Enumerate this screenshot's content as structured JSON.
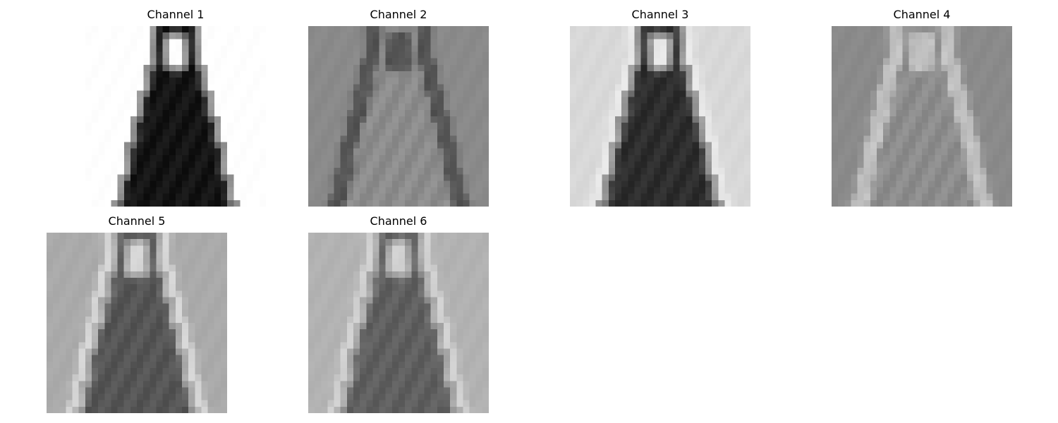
{
  "chart_data": {
    "type": "heatmap",
    "colormap": "gray",
    "axis": "off",
    "grid": false,
    "layout": {
      "rows": 2,
      "cols": 4
    },
    "panels": [
      {
        "title": "Channel 1",
        "background": 255,
        "silhouette": {
          "width": 255,
          "height": 255
        },
        "outline": 255,
        "inner": 20
      },
      {
        "title": "Channel 2",
        "background": 138,
        "silhouette": {
          "width": 255,
          "height": 255
        },
        "outline": 40,
        "inner": 140
      },
      {
        "title": "Channel 3",
        "background": 216,
        "silhouette": {
          "width": 255,
          "height": 255
        },
        "outline": 245,
        "inner": 45
      },
      {
        "title": "Channel 4",
        "background": 138,
        "silhouette": {
          "width": 255,
          "height": 255
        },
        "outline": 235,
        "inner": 140
      },
      {
        "title": "Channel 5",
        "background": 170,
        "silhouette": {
          "width": 255,
          "height": 255
        },
        "outline": 250,
        "inner": 85
      },
      {
        "title": "Channel 6",
        "background": 178,
        "silhouette": {
          "width": 255,
          "height": 255
        },
        "outline": 235,
        "inner": 95
      }
    ]
  }
}
